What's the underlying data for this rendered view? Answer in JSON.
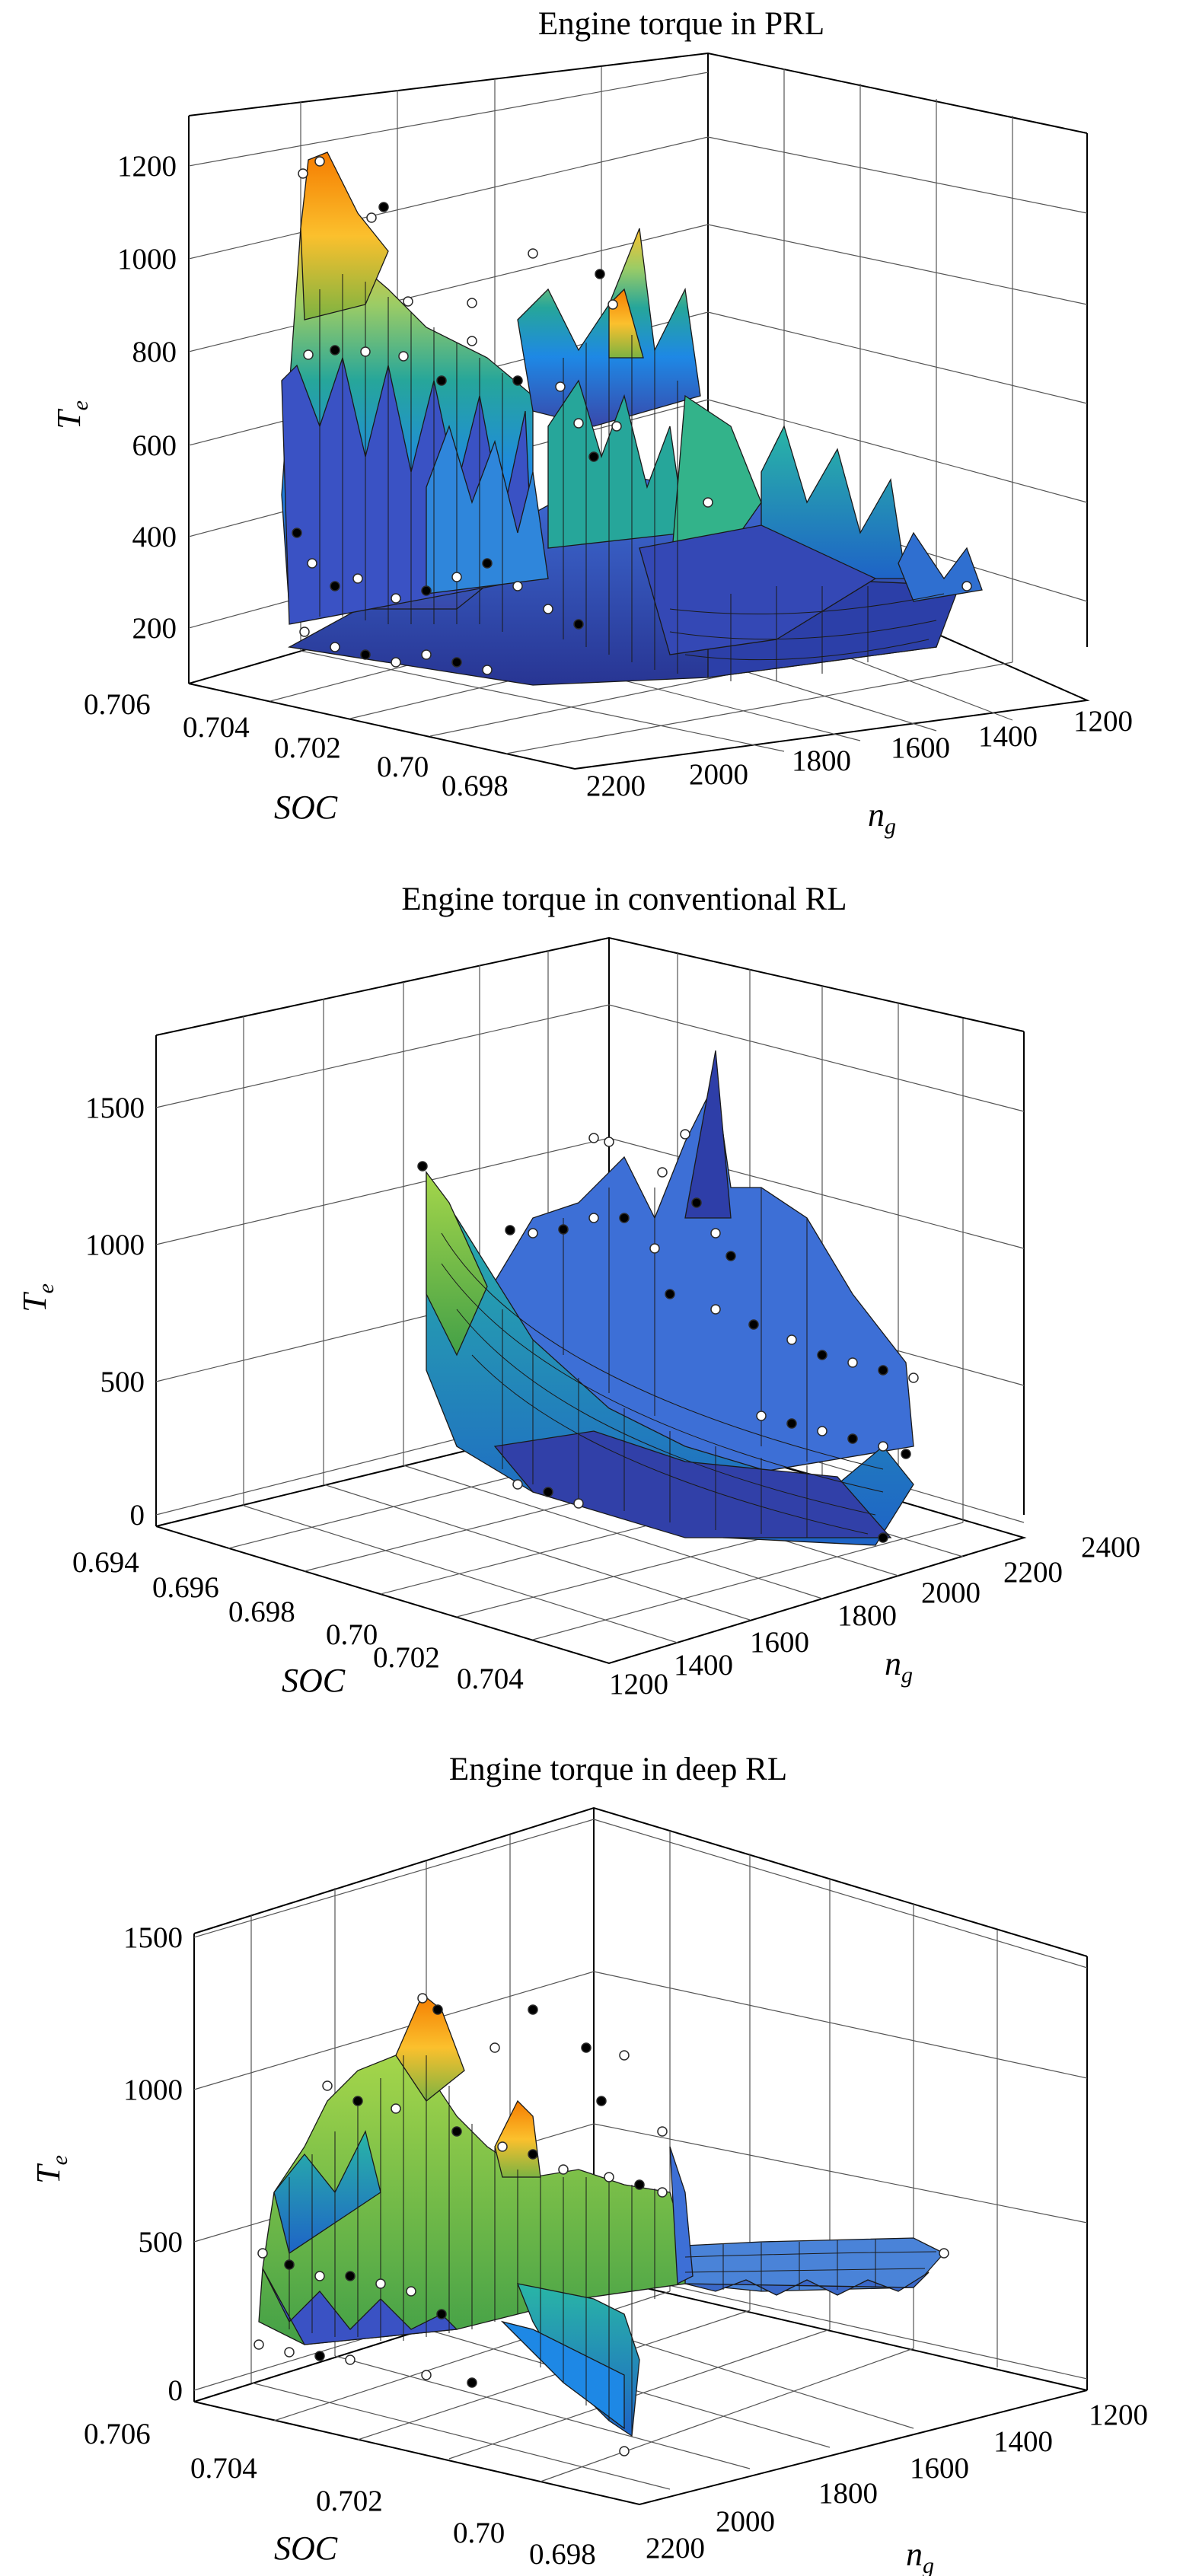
{
  "chart_data": [
    {
      "type": "surface",
      "title": "Engine torque in PRL",
      "zlabel": "T",
      "zlabel_sub": "e",
      "xlabel": "SOC",
      "ylabel": "n",
      "ylabel_sub": "g",
      "z_ticks": [
        "200",
        "400",
        "600",
        "800",
        "1000",
        "1200"
      ],
      "x_ticks": [
        "0.706",
        "0.704",
        "0.702",
        "0.70",
        "0.698"
      ],
      "y_ticks": [
        "2200",
        "2000",
        "1800",
        "1600",
        "1400",
        "1200"
      ],
      "zlim": [
        100,
        1300
      ],
      "xlim": [
        0.706,
        0.697
      ],
      "ylim": [
        2300,
        1150
      ],
      "grid": true,
      "colormap": "parula",
      "surface_ridges": [
        {
          "soc": 0.7045,
          "n_g": 2250,
          "peak_Te": 750
        },
        {
          "soc": 0.7045,
          "n_g": 2100,
          "peak_Te": 1100
        },
        {
          "soc": 0.7045,
          "n_g": 1950,
          "peak_Te": 1210
        },
        {
          "soc": 0.7025,
          "n_g": 2100,
          "peak_Te": 950
        },
        {
          "soc": 0.7005,
          "n_g": 1950,
          "peak_Te": 1050
        },
        {
          "soc": 0.6995,
          "n_g": 1850,
          "peak_Te": 1020
        },
        {
          "soc": 0.6985,
          "n_g": 1750,
          "peak_Te": 880
        }
      ],
      "markers": "white and black circular samples scattered along the surface"
    },
    {
      "type": "surface",
      "title": "Engine torque in conventional RL",
      "zlabel": "T",
      "zlabel_sub": "e",
      "xlabel": "SOC",
      "ylabel": "n",
      "ylabel_sub": "g",
      "z_ticks": [
        "0",
        "500",
        "1000",
        "1500"
      ],
      "x_ticks": [
        "0.694",
        "0.696",
        "0.698",
        "0.70",
        "0.702",
        "0.704"
      ],
      "y_ticks": [
        "1200",
        "1400",
        "1600",
        "1800",
        "2000",
        "2200",
        "2400"
      ],
      "zlim": [
        -50,
        1750
      ],
      "xlim": [
        0.694,
        0.705
      ],
      "ylim": [
        1150,
        2450
      ],
      "grid": true,
      "colormap": "parula",
      "surface_ridges": [
        {
          "soc": 0.6975,
          "n_g": 1250,
          "peak_Te": 1150
        },
        {
          "soc": 0.6985,
          "n_g": 1350,
          "peak_Te": 900
        },
        {
          "soc": 0.7015,
          "n_g": 1600,
          "peak_Te": 1250
        },
        {
          "soc": 0.7025,
          "n_g": 1750,
          "peak_Te": 1600
        },
        {
          "soc": 0.7035,
          "n_g": 2000,
          "peak_Te": 1050
        }
      ],
      "markers": "white and black circular samples scattered along the surface"
    },
    {
      "type": "surface",
      "title": "Engine torque in deep RL",
      "zlabel": "T",
      "zlabel_sub": "e",
      "xlabel": "SOC",
      "ylabel": "n",
      "ylabel_sub": "g",
      "z_ticks": [
        "0",
        "500",
        "1000",
        "1500"
      ],
      "x_ticks": [
        "0.706",
        "0.704",
        "0.702",
        "0.70",
        "0.698"
      ],
      "y_ticks": [
        "2200",
        "2000",
        "1800",
        "1600",
        "1400",
        "1200"
      ],
      "zlim": [
        -50,
        1500
      ],
      "xlim": [
        0.706,
        0.697
      ],
      "ylim": [
        2300,
        1150
      ],
      "grid": true,
      "colormap": "parula",
      "surface_ridges": [
        {
          "soc": 0.7035,
          "n_g": 2100,
          "peak_Te": 1280
        },
        {
          "soc": 0.7025,
          "n_g": 2050,
          "peak_Te": 1000
        },
        {
          "soc": 0.7005,
          "n_g": 1950,
          "peak_Te": 1050
        },
        {
          "soc": 0.6995,
          "n_g": 1850,
          "peak_Te": 750
        }
      ],
      "markers": "white and black circular samples scattered along the surface"
    }
  ]
}
